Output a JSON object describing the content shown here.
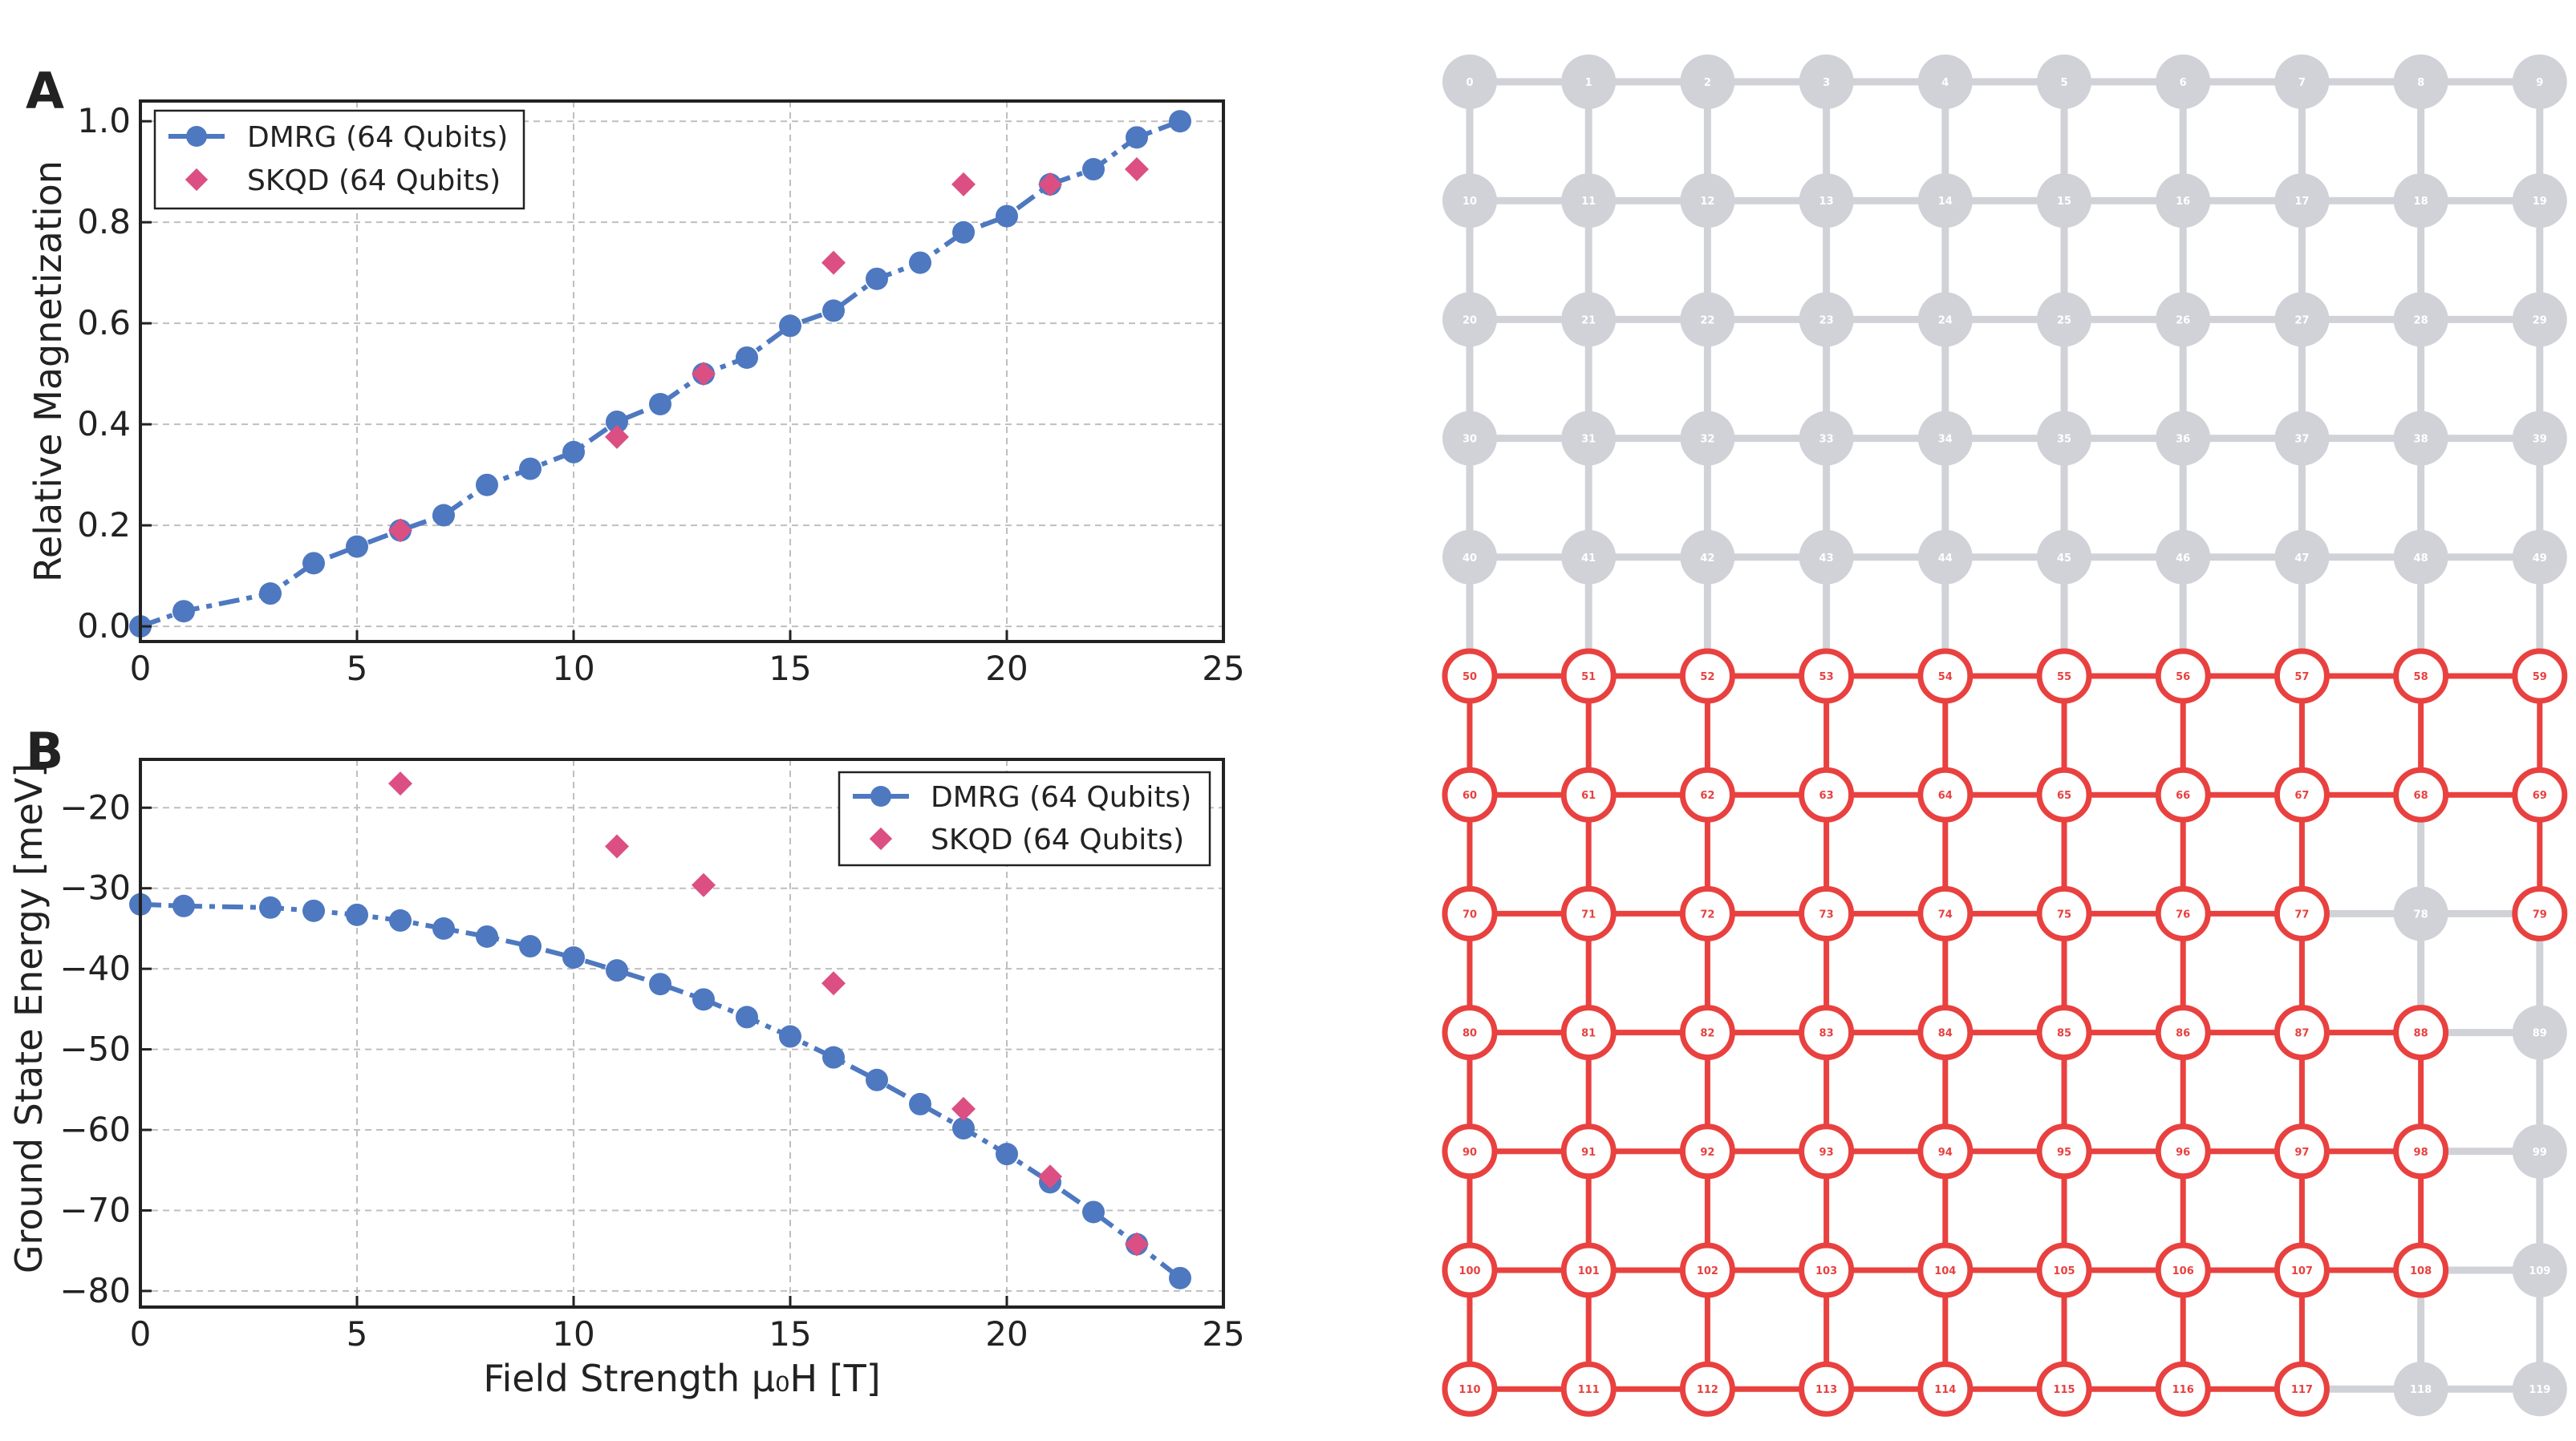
{
  "colors": {
    "dmrg": "#4e78c0",
    "skqd": "#dc4f82",
    "active": "#e8413f",
    "inactive": "#d0d2d8",
    "axis": "#222222"
  },
  "chart_data": [
    {
      "panel": "A",
      "type": "line",
      "ylabel": "Relative Magnetization",
      "xlabel": "",
      "xlim": [
        0,
        25
      ],
      "ylim": [
        -0.03,
        1.04
      ],
      "xticks": [
        0,
        5,
        10,
        15,
        20,
        25
      ],
      "yticks": [
        0.0,
        0.2,
        0.4,
        0.6,
        0.8,
        1.0
      ],
      "ytick_labels": [
        "0.0",
        "0.2",
        "0.4",
        "0.6",
        "0.8",
        "1.0"
      ],
      "grid": true,
      "legend_position": "top-left",
      "series": [
        {
          "name": "DMRG (64 Qubits)",
          "marker": "circle",
          "line": "dash-dot",
          "x": [
            0,
            1,
            3,
            4,
            5,
            6,
            7,
            8,
            9,
            10,
            11,
            12,
            13,
            14,
            15,
            16,
            17,
            18,
            19,
            20,
            21,
            22,
            23,
            24
          ],
          "y": [
            0.0,
            0.03,
            0.065,
            0.125,
            0.158,
            0.19,
            0.22,
            0.28,
            0.312,
            0.345,
            0.405,
            0.44,
            0.5,
            0.532,
            0.595,
            0.625,
            0.688,
            0.72,
            0.78,
            0.812,
            0.875,
            0.905,
            0.968,
            1.0
          ]
        },
        {
          "name": "SKQD (64 Qubits)",
          "marker": "diamond",
          "line": "none",
          "x": [
            6,
            11,
            13,
            16,
            19,
            21,
            23
          ],
          "y": [
            0.19,
            0.375,
            0.5,
            0.72,
            0.875,
            0.875,
            0.905
          ]
        }
      ]
    },
    {
      "panel": "B",
      "type": "line",
      "ylabel": "Ground State Energy [meV]",
      "xlabel": "Field Strength μ₀H [T]",
      "xlim": [
        0,
        25
      ],
      "ylim": [
        -82,
        -14
      ],
      "xticks": [
        0,
        5,
        10,
        15,
        20,
        25
      ],
      "yticks": [
        -20,
        -30,
        -40,
        -50,
        -60,
        -70,
        -80
      ],
      "ytick_labels": [
        "−20",
        "−30",
        "−40",
        "−50",
        "−60",
        "−70",
        "−80"
      ],
      "grid": true,
      "legend_position": "top-right",
      "series": [
        {
          "name": "DMRG (64 Qubits)",
          "marker": "circle",
          "line": "dash-dot",
          "x": [
            0,
            1,
            3,
            4,
            5,
            6,
            7,
            8,
            9,
            10,
            11,
            12,
            13,
            14,
            15,
            16,
            17,
            18,
            19,
            20,
            21,
            22,
            23,
            24
          ],
          "y": [
            -32,
            -32.2,
            -32.4,
            -32.8,
            -33.3,
            -34,
            -35,
            -36,
            -37.2,
            -38.6,
            -40.2,
            -41.9,
            -43.8,
            -46,
            -48.4,
            -51,
            -53.8,
            -56.8,
            -59.8,
            -63,
            -66.5,
            -70.2,
            -74.2,
            -78.4
          ]
        },
        {
          "name": "SKQD (64 Qubits)",
          "marker": "diamond",
          "line": "none",
          "x": [
            6,
            11,
            13,
            16,
            19,
            21,
            23
          ],
          "y": [
            -17,
            -24.8,
            -29.6,
            -41.8,
            -57.4,
            -65.8,
            -74.2
          ]
        }
      ]
    }
  ],
  "panels": {
    "A": "A",
    "B": "B"
  },
  "lattice": {
    "rows": 12,
    "cols": 10,
    "active_nodes": [
      50,
      51,
      52,
      53,
      54,
      55,
      56,
      57,
      58,
      59,
      60,
      61,
      62,
      63,
      64,
      65,
      66,
      67,
      68,
      69,
      70,
      71,
      72,
      73,
      74,
      75,
      76,
      77,
      79,
      80,
      81,
      82,
      83,
      84,
      85,
      86,
      87,
      88,
      90,
      91,
      92,
      93,
      94,
      95,
      96,
      97,
      98,
      100,
      101,
      102,
      103,
      104,
      105,
      106,
      107,
      108,
      110,
      111,
      112,
      113,
      114,
      115,
      116,
      117
    ]
  }
}
